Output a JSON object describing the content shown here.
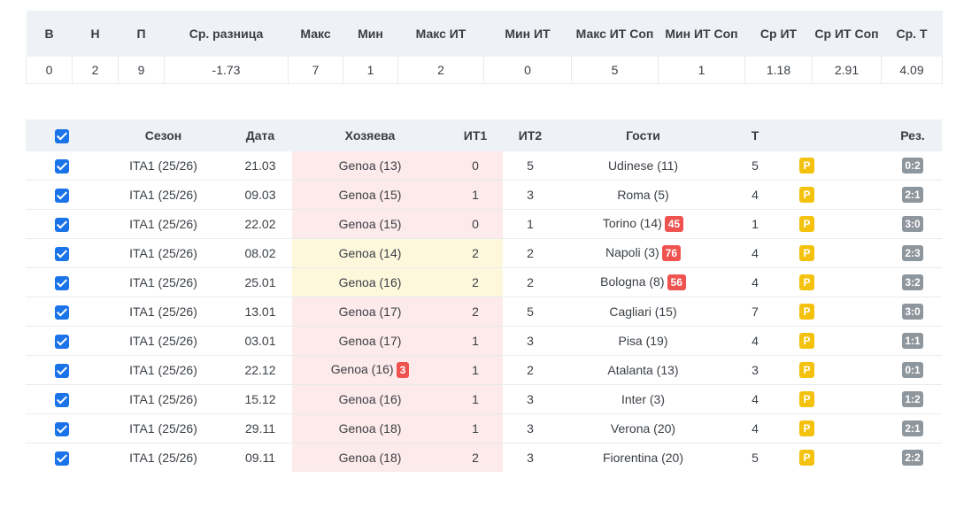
{
  "stats": {
    "headers": [
      "В",
      "Н",
      "П",
      "Ср. разница",
      "Макс",
      "Мин",
      "Макс ИТ",
      "Мин ИТ",
      "Макс ИТ Соп",
      "Мин ИТ Соп",
      "Ср ИТ",
      "Ср ИТ Соп",
      "Ср. Т"
    ],
    "values": [
      "0",
      "2",
      "9",
      "-1.73",
      "7",
      "1",
      "2",
      "0",
      "5",
      "1",
      "1.18",
      "2.91",
      "4.09"
    ]
  },
  "matches": {
    "headers": {
      "season": "Сезон",
      "date": "Дата",
      "home": "Хозяева",
      "it1": "ИТ1",
      "it2": "ИТ2",
      "away": "Гости",
      "total": "Т",
      "result": "Рез."
    },
    "rows": [
      {
        "season": "ITA1 (25/26)",
        "date": "21.03",
        "home": "Genoa (13)",
        "home_badge": "",
        "it1": "0",
        "it2": "5",
        "away": "Udinese (11)",
        "away_badge": "",
        "total": "5",
        "tag": "P",
        "score": "0:2"
      },
      {
        "season": "ITA1 (25/26)",
        "date": "09.03",
        "home": "Genoa (15)",
        "home_badge": "",
        "it1": "1",
        "it2": "3",
        "away": "Roma (5)",
        "away_badge": "",
        "total": "4",
        "tag": "P",
        "score": "2:1"
      },
      {
        "season": "ITA1 (25/26)",
        "date": "22.02",
        "home": "Genoa (15)",
        "home_badge": "",
        "it1": "0",
        "it2": "1",
        "away": "Torino (14)",
        "away_badge": "45",
        "total": "1",
        "tag": "P",
        "score": "3:0"
      },
      {
        "season": "ITA1 (25/26)",
        "date": "08.02",
        "home": "Genoa (14)",
        "home_badge": "",
        "it1": "2",
        "it2": "2",
        "away": "Napoli (3)",
        "away_badge": "76",
        "total": "4",
        "tag": "P",
        "score": "2:3"
      },
      {
        "season": "ITA1 (25/26)",
        "date": "25.01",
        "home": "Genoa (16)",
        "home_badge": "",
        "it1": "2",
        "it2": "2",
        "away": "Bologna (8)",
        "away_badge": "56",
        "total": "4",
        "tag": "P",
        "score": "3:2"
      },
      {
        "season": "ITA1 (25/26)",
        "date": "13.01",
        "home": "Genoa (17)",
        "home_badge": "",
        "it1": "2",
        "it2": "5",
        "away": "Cagliari (15)",
        "away_badge": "",
        "total": "7",
        "tag": "P",
        "score": "3:0"
      },
      {
        "season": "ITA1 (25/26)",
        "date": "03.01",
        "home": "Genoa (17)",
        "home_badge": "",
        "it1": "1",
        "it2": "3",
        "away": "Pisa (19)",
        "away_badge": "",
        "total": "4",
        "tag": "P",
        "score": "1:1"
      },
      {
        "season": "ITA1 (25/26)",
        "date": "22.12",
        "home": "Genoa (16)",
        "home_badge": "3",
        "it1": "1",
        "it2": "2",
        "away": "Atalanta (13)",
        "away_badge": "",
        "total": "3",
        "tag": "P",
        "score": "0:1"
      },
      {
        "season": "ITA1 (25/26)",
        "date": "15.12",
        "home": "Genoa (16)",
        "home_badge": "",
        "it1": "1",
        "it2": "3",
        "away": "Inter (3)",
        "away_badge": "",
        "total": "4",
        "tag": "P",
        "score": "1:2"
      },
      {
        "season": "ITA1 (25/26)",
        "date": "29.11",
        "home": "Genoa (18)",
        "home_badge": "",
        "it1": "1",
        "it2": "3",
        "away": "Verona (20)",
        "away_badge": "",
        "total": "4",
        "tag": "P",
        "score": "2:1"
      },
      {
        "season": "ITA1 (25/26)",
        "date": "09.11",
        "home": "Genoa (18)",
        "home_badge": "",
        "it1": "2",
        "it2": "3",
        "away": "Fiorentina (20)",
        "away_badge": "",
        "total": "5",
        "tag": "P",
        "score": "2:2"
      }
    ]
  }
}
